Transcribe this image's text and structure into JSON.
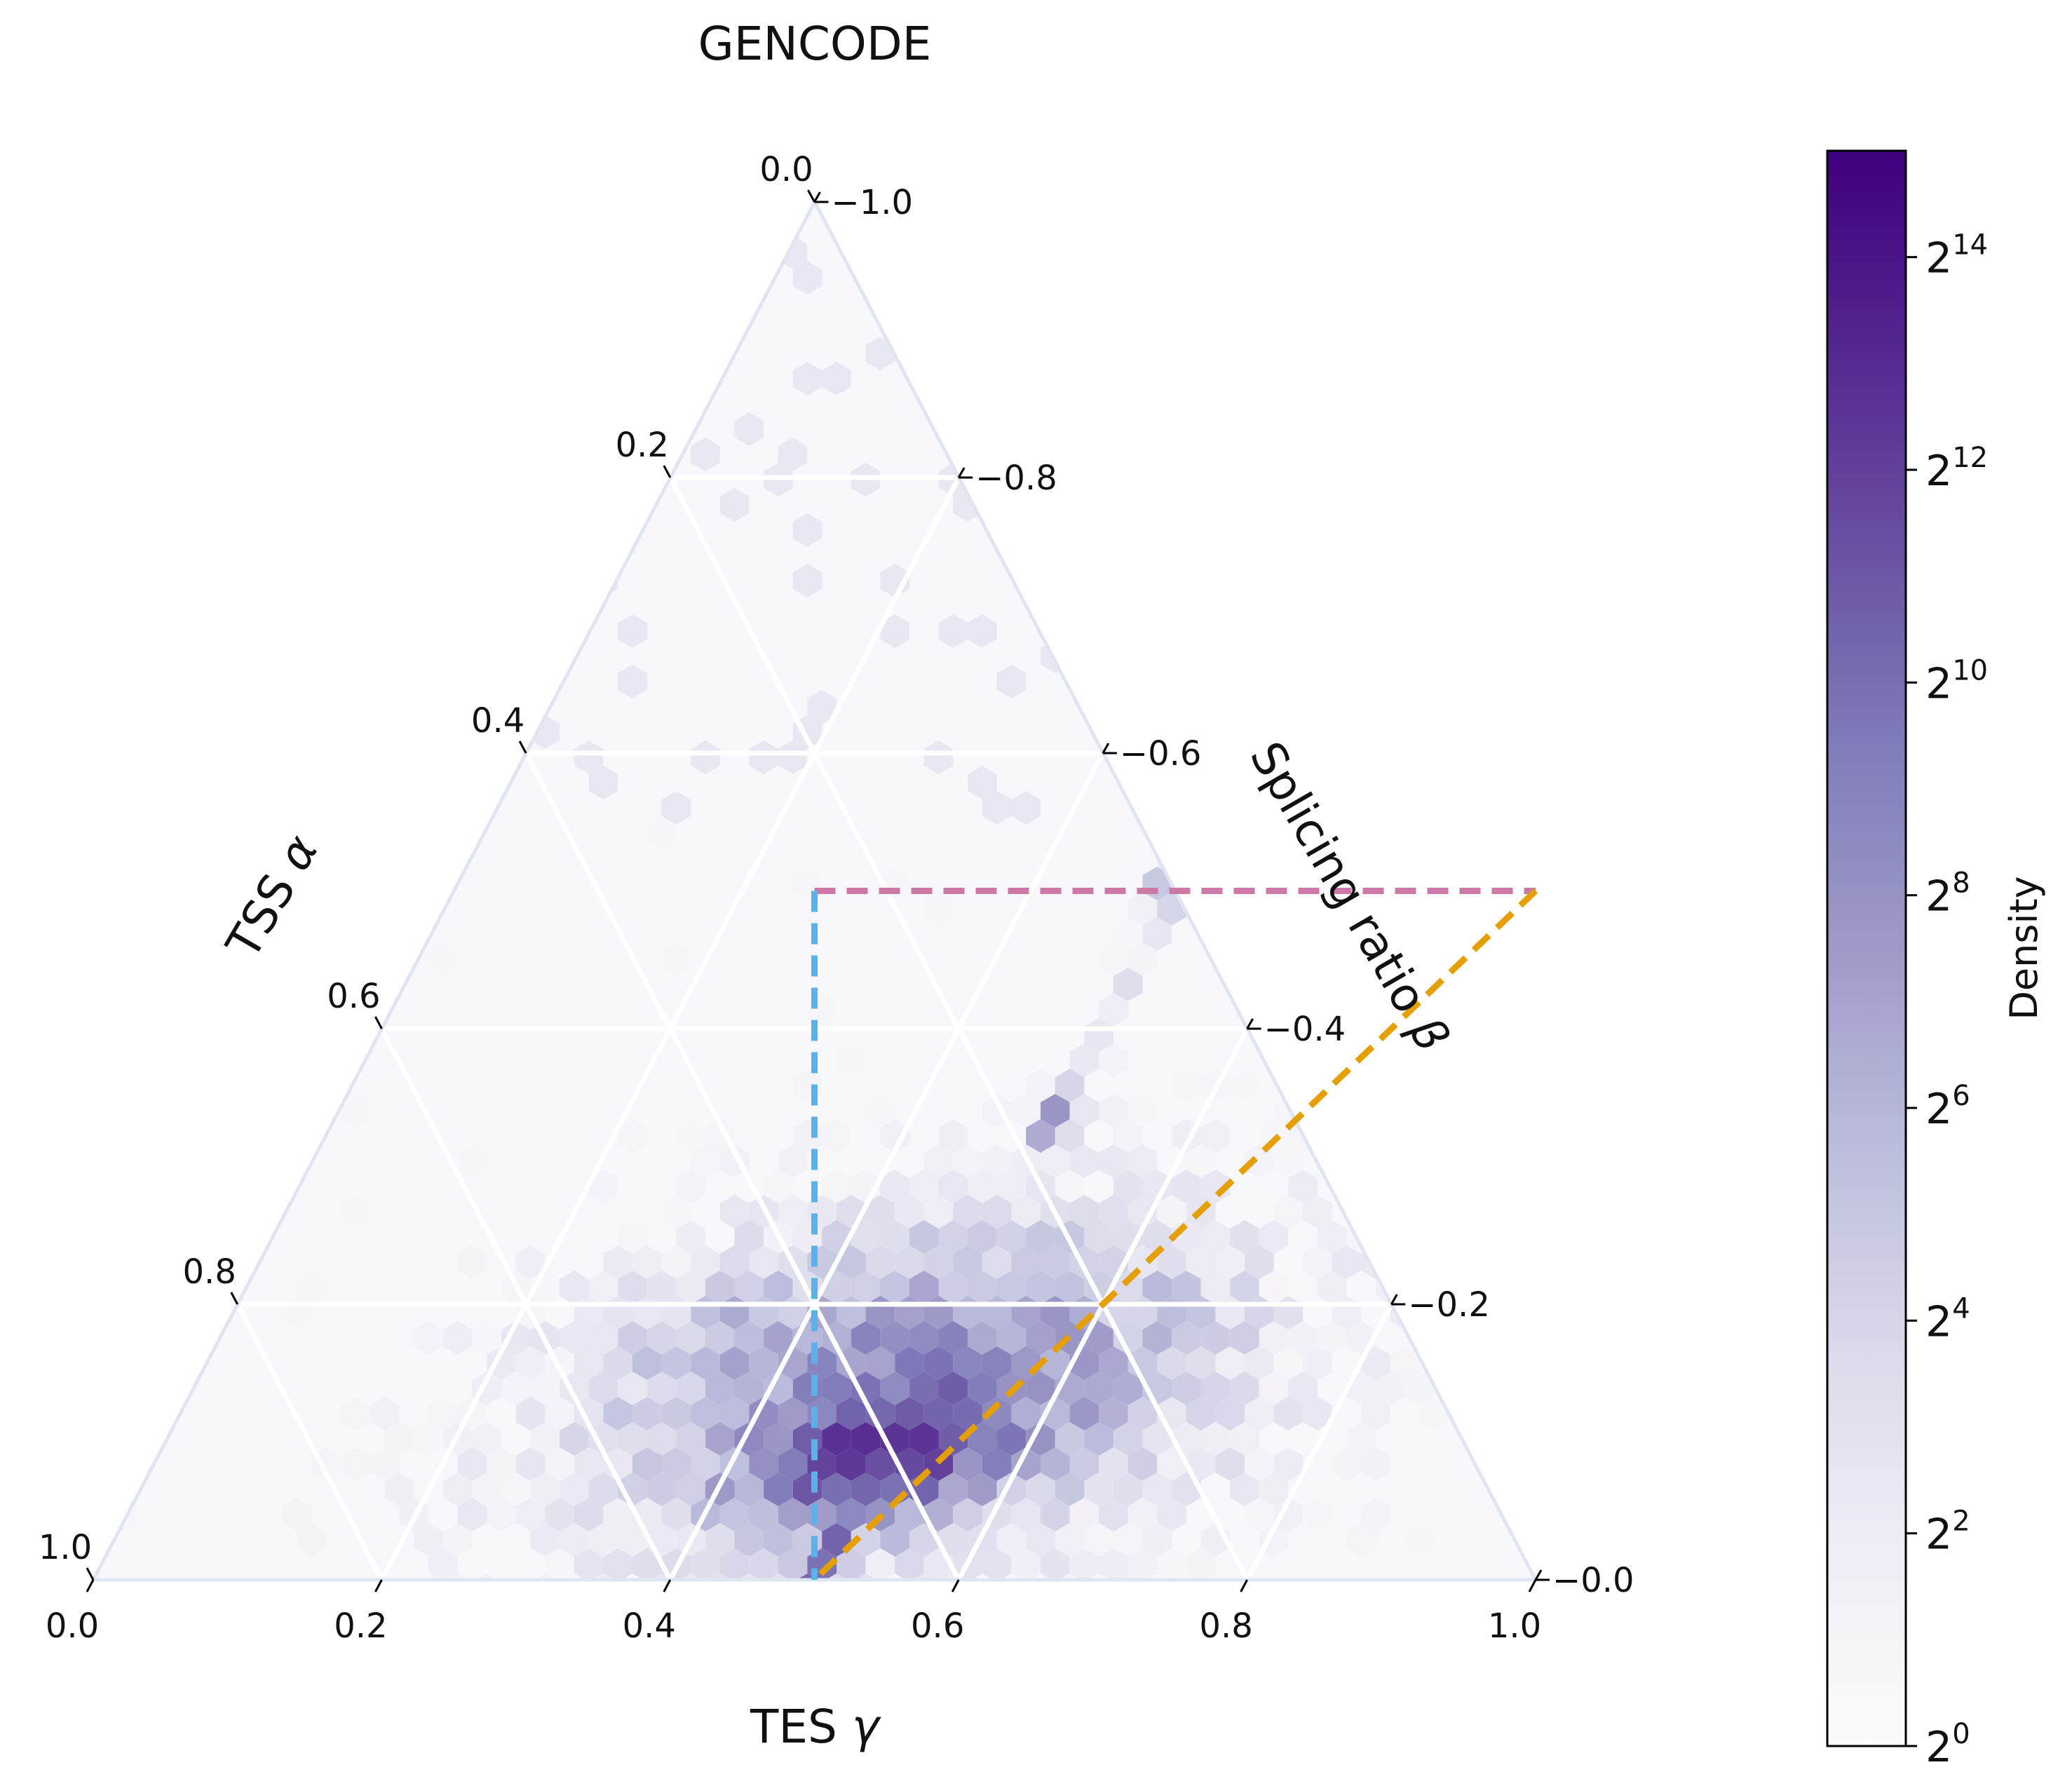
{
  "chart_data": {
    "type": "ternary-hexbin",
    "title": "GENCODE",
    "axes": {
      "bottom": {
        "label": "TES γ",
        "label_text": "TES ",
        "label_symbol": "γ",
        "ticks": [
          "0.0",
          "0.2",
          "0.4",
          "0.6",
          "0.8",
          "1.0"
        ],
        "tick_values": [
          0.0,
          0.2,
          0.4,
          0.6,
          0.8,
          1.0
        ],
        "range": [
          0,
          1
        ]
      },
      "left": {
        "label": "TSS α",
        "label_text": "TSS ",
        "label_symbol": "α",
        "ticks": [
          "0.0",
          "0.2",
          "0.4",
          "0.6",
          "0.8",
          "1.0"
        ],
        "tick_values": [
          0.0,
          0.2,
          0.4,
          0.6,
          0.8,
          1.0
        ],
        "range": [
          0,
          1
        ]
      },
      "right": {
        "label": "Splicing ratio β",
        "label_text": "Splicing ratio ",
        "label_symbol": "β",
        "ticks": [
          "1.0",
          "0.8",
          "0.6",
          "0.4",
          "0.2",
          "0.0"
        ],
        "tick_values": [
          1.0,
          0.8,
          0.6,
          0.4,
          0.2,
          0.0
        ],
        "range": [
          0,
          1
        ]
      }
    },
    "grid": true,
    "grid_values": [
      0.2,
      0.4,
      0.6,
      0.8
    ],
    "reference_lines": [
      {
        "name": "beta-threshold",
        "color": "#cc79a7",
        "style": "dashed",
        "from": {
          "gamma": 0.25,
          "beta": 0.5
        },
        "to": {
          "gamma": 0.75,
          "beta": 0.5
        }
      },
      {
        "name": "alpha-threshold",
        "color": "#56b4e9",
        "style": "dashed",
        "from": {
          "gamma": 0.25,
          "beta": 0.5
        },
        "to": {
          "gamma": 0.5,
          "beta": 0.0
        }
      },
      {
        "name": "gamma-threshold",
        "color": "#e69f00",
        "style": "dashed",
        "from": {
          "gamma": 0.75,
          "beta": 0.5
        },
        "to": {
          "gamma": 0.5,
          "beta": 0.0
        }
      }
    ],
    "colorbar": {
      "label": "Density",
      "scale": "log2",
      "min_exponent": 0,
      "max_exponent": 15,
      "tick_exponents": [
        0,
        2,
        4,
        6,
        8,
        10,
        12,
        14
      ],
      "tick_base": "2",
      "colors": [
        "#fcfbfd",
        "#efedf5",
        "#dadaeb",
        "#bcbddc",
        "#9e9ac8",
        "#807dba",
        "#6a51a3",
        "#54278f",
        "#3f007d"
      ]
    },
    "density_summary": [
      {
        "gamma": 0.5,
        "beta": 0.1,
        "log2_density": 14.5
      },
      {
        "gamma": 0.45,
        "beta": 0.1,
        "log2_density": 13.0
      },
      {
        "gamma": 0.55,
        "beta": 0.1,
        "log2_density": 12.5
      },
      {
        "gamma": 0.5,
        "beta": 0.33,
        "log2_density": 11.0
      },
      {
        "gamma": 0.5,
        "beta": 0.5,
        "log2_density": 9.0
      },
      {
        "gamma": 0.65,
        "beta": 0.2,
        "log2_density": 8.0
      },
      {
        "gamma": 0.35,
        "beta": 0.2,
        "log2_density": 7.5
      },
      {
        "gamma": 0.5,
        "beta": 0.8,
        "log2_density": 2.0
      }
    ]
  }
}
